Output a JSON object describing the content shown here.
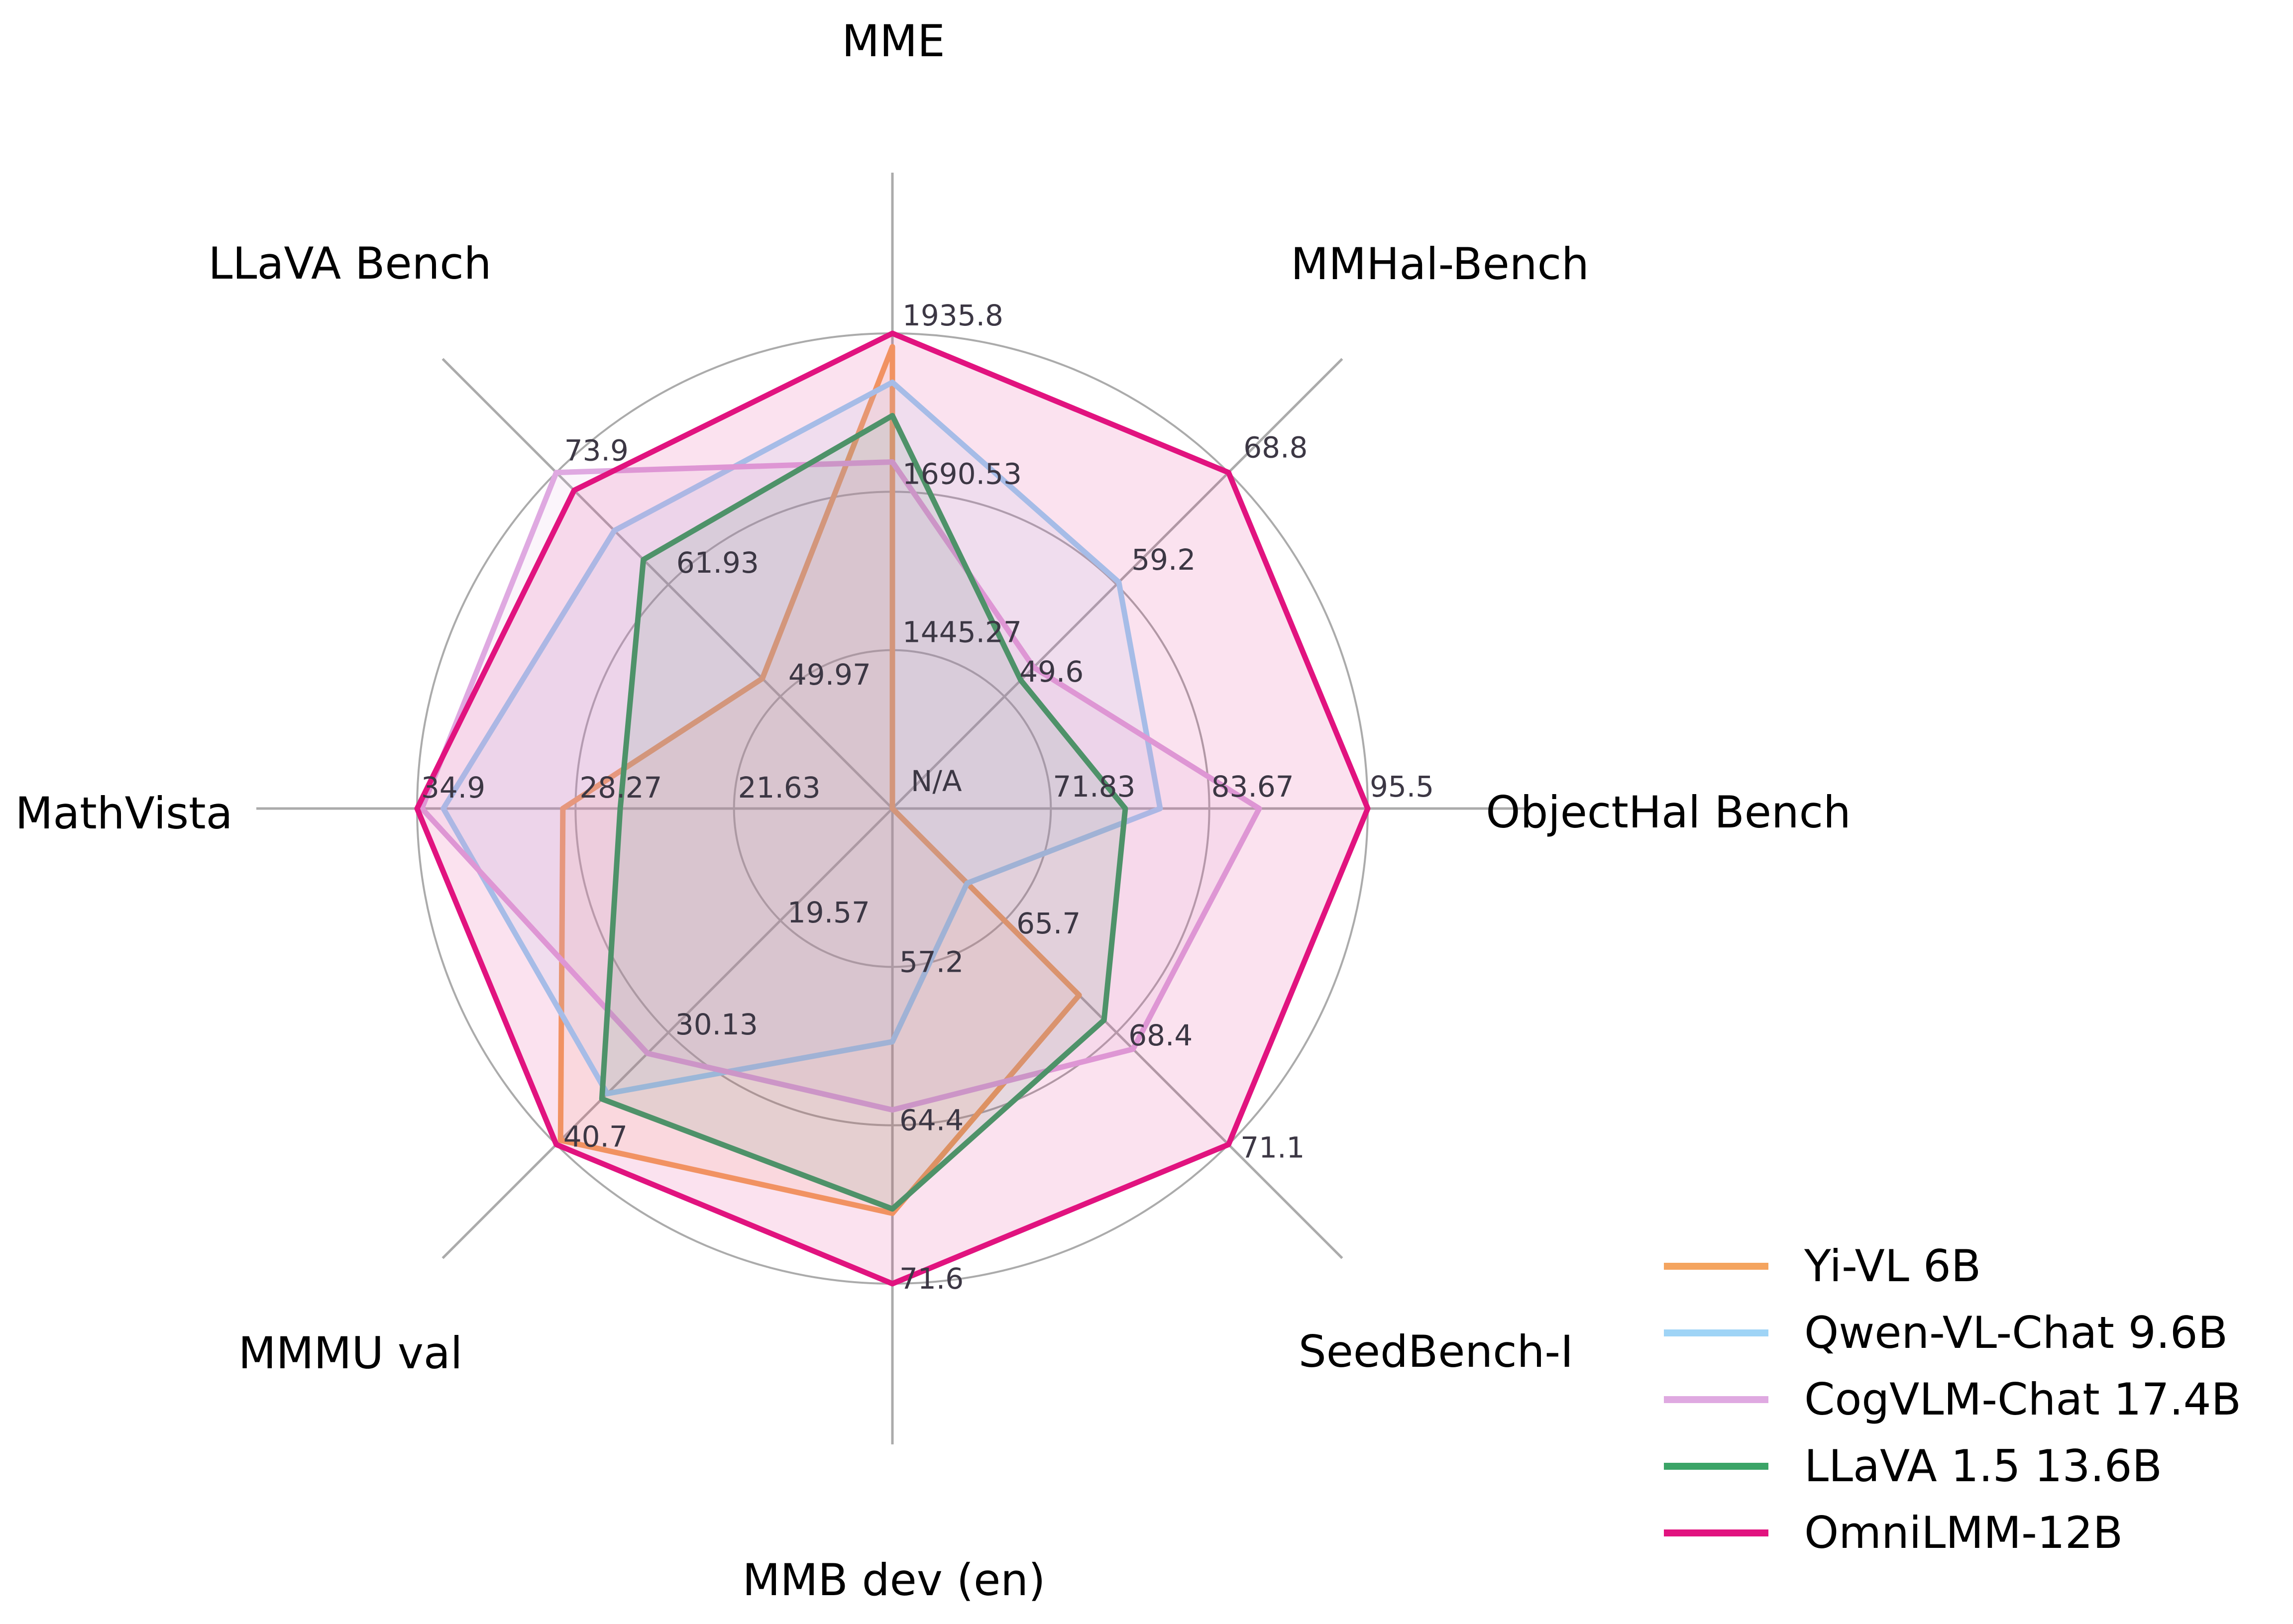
{
  "chart_data": {
    "type": "radar",
    "title": "",
    "axes": [
      {
        "label": "MME",
        "axis_min": 1200.01,
        "axis_max": 1935.8,
        "ticks": [
          1445.27,
          1690.53,
          1935.8
        ]
      },
      {
        "label": "MMHal-Bench",
        "axis_min": 40.0,
        "axis_max": 68.8,
        "ticks": [
          49.6,
          59.2,
          68.8
        ]
      },
      {
        "label": "ObjectHal Bench",
        "axis_min": 60.01,
        "axis_max": 95.5,
        "ticks": [
          71.83,
          83.67,
          95.5
        ]
      },
      {
        "label": "SeedBench-I",
        "axis_min": 63.0,
        "axis_max": 71.1,
        "ticks": [
          65.7,
          68.4,
          71.1
        ]
      },
      {
        "label": "MMB dev (en)",
        "axis_min": 50.0,
        "axis_max": 71.6,
        "ticks": [
          57.2,
          64.4,
          71.6
        ]
      },
      {
        "label": "MMMU val",
        "axis_min": 9.0,
        "axis_max": 40.7,
        "ticks": [
          19.57,
          30.13,
          40.7
        ]
      },
      {
        "label": "MathVista",
        "axis_min": 15.01,
        "axis_max": 34.9,
        "ticks": [
          21.63,
          28.27,
          34.9
        ]
      },
      {
        "label": "LLaVA Bench",
        "axis_min": 38.01,
        "axis_max": 73.9,
        "ticks": [
          49.97,
          61.93,
          73.9
        ]
      }
    ],
    "center_label": "N/A",
    "series": [
      {
        "name": "Yi-VL 6B",
        "color": "#F4A45F",
        "values": [
          1915.1,
          null,
          null,
          67.5,
          68.4,
          40.3,
          28.8,
          51.9
        ]
      },
      {
        "name": "Qwen-VL-Chat 9.6B",
        "color": "#9FD4F6",
        "values": [
          1860.0,
          59.4,
          80.0,
          64.8,
          60.6,
          35.9,
          33.8,
          67.7
        ]
      },
      {
        "name": "CogVLM-Chat 17.4B",
        "color": "#DFA9E1",
        "values": [
          1736.6,
          52.1,
          87.4,
          68.8,
          63.7,
          32.1,
          34.7,
          73.9
        ]
      },
      {
        "name": "LLaVA 1.5 13.6B",
        "color": "#3BA467",
        "values": [
          1808.4,
          51.0,
          77.4,
          68.1,
          68.2,
          36.4,
          26.4,
          64.6
        ]
      },
      {
        "name": "OmniLMM-12B",
        "color": "#E1137F",
        "values": [
          1935.8,
          68.8,
          95.5,
          71.1,
          71.6,
          40.7,
          34.9,
          72.0
        ]
      }
    ],
    "grid": {
      "rings": 3,
      "color": "#ABABAB",
      "grid_on": true
    },
    "legend_position": "lower right",
    "notes": "null value = N/A, plotted at chart center"
  }
}
